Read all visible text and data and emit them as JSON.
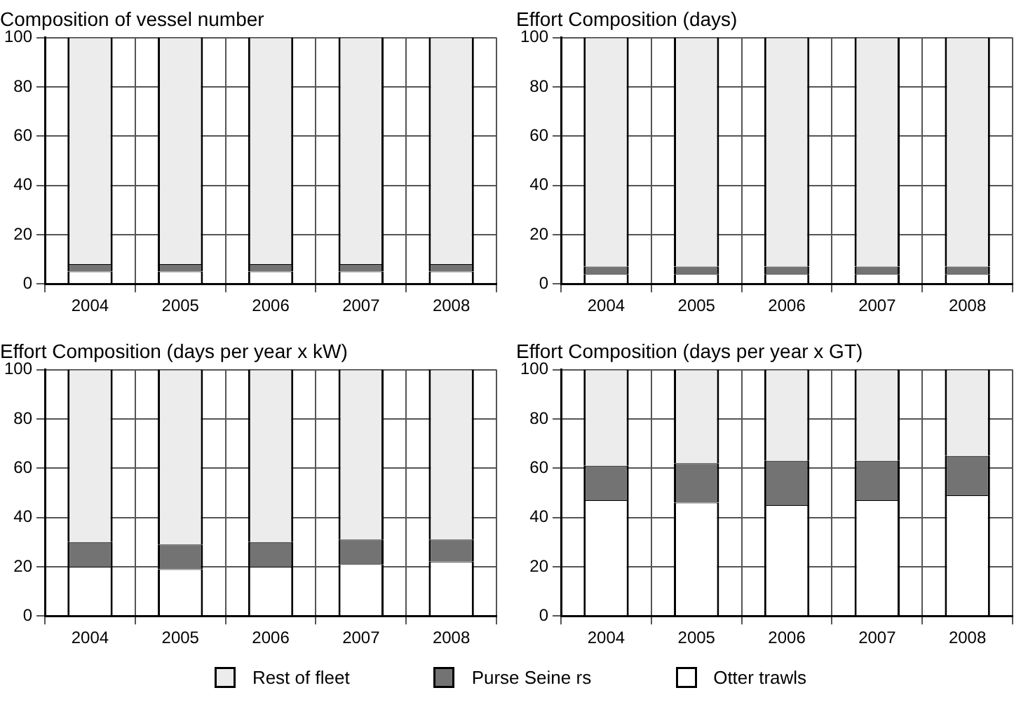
{
  "chart_data": [
    {
      "type": "bar",
      "title": "Composition of vessel number",
      "categories": [
        "2004",
        "2005",
        "2006",
        "2007",
        "2008"
      ],
      "stacked": true,
      "ylim": [
        0,
        100
      ],
      "yticks": [
        0,
        20,
        40,
        60,
        80,
        100
      ],
      "grid": true,
      "series": [
        {
          "color": "#ffffff",
          "values": [
            5,
            5,
            5,
            5,
            5
          ]
        },
        {
          "color": "#737373",
          "values": [
            3,
            3,
            3,
            3,
            3
          ]
        },
        {
          "color": "#ececec",
          "values": [
            92,
            92,
            92,
            92,
            92
          ]
        }
      ]
    },
    {
      "type": "bar",
      "title": "Effort Composition (days)",
      "categories": [
        "2004",
        "2005",
        "2006",
        "2007",
        "2008"
      ],
      "stacked": true,
      "ylim": [
        0,
        100
      ],
      "yticks": [
        0,
        20,
        40,
        60,
        80,
        100
      ],
      "grid": true,
      "series": [
        {
          "color": "#ffffff",
          "values": [
            4,
            4,
            4,
            4,
            4
          ]
        },
        {
          "color": "#737373",
          "values": [
            3,
            3,
            3,
            3,
            3
          ]
        },
        {
          "color": "#ececec",
          "values": [
            93,
            93,
            93,
            93,
            93
          ]
        }
      ]
    },
    {
      "type": "bar",
      "title": "Effort Composition (days per year x kW)",
      "categories": [
        "2004",
        "2005",
        "2006",
        "2007",
        "2008"
      ],
      "stacked": true,
      "ylim": [
        0,
        100
      ],
      "yticks": [
        0,
        20,
        40,
        60,
        80,
        100
      ],
      "grid": true,
      "series": [
        {
          "color": "#ffffff",
          "values": [
            20,
            19,
            20,
            21,
            22
          ]
        },
        {
          "color": "#737373",
          "values": [
            10,
            10,
            10,
            10,
            9
          ]
        },
        {
          "color": "#ececec",
          "values": [
            70,
            71,
            70,
            69,
            69
          ]
        }
      ]
    },
    {
      "type": "bar",
      "title": "Effort Composition (days per year x GT)",
      "categories": [
        "2004",
        "2005",
        "2006",
        "2007",
        "2008"
      ],
      "stacked": true,
      "ylim": [
        0,
        100
      ],
      "yticks": [
        0,
        20,
        40,
        60,
        80,
        100
      ],
      "grid": true,
      "legend": "bottom",
      "series": [
        {
          "name": "Otter trawls",
          "color": "#ffffff",
          "values": [
            47,
            46,
            45,
            47,
            49
          ]
        },
        {
          "name": "Purse Seine rs",
          "color": "#737373",
          "values": [
            14,
            16,
            18,
            16,
            16
          ]
        },
        {
          "name": "Rest of fleet",
          "color": "#ececec",
          "values": [
            39,
            38,
            37,
            37,
            35
          ]
        }
      ]
    }
  ]
}
